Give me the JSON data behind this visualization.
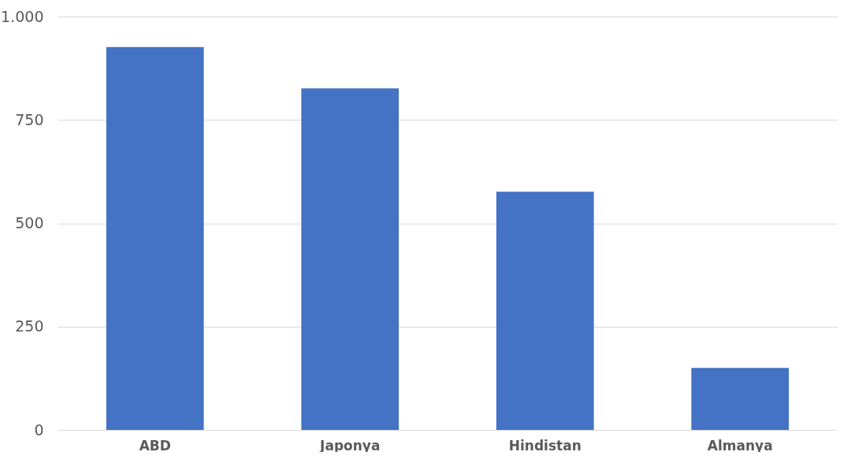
{
  "chart_data": {
    "type": "bar",
    "categories": [
      "ABD",
      "Japonya",
      "Hindistan",
      "Almanya"
    ],
    "values": [
      926,
      826,
      576,
      150
    ],
    "color": "#4472c4",
    "ylim": [
      0,
      1000
    ],
    "yticks": [
      0,
      250,
      500,
      750,
      {
        "value": 1000,
        "label": "1.000"
      }
    ],
    "grid": "y"
  }
}
